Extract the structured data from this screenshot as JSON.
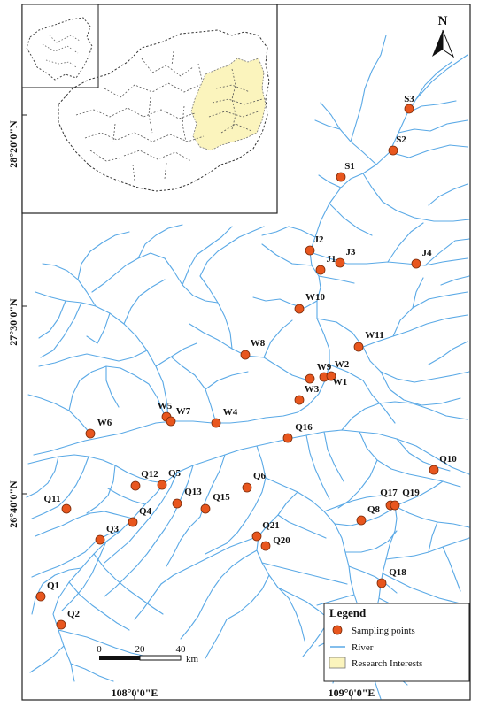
{
  "north_label": "N",
  "lat_labels": [
    "28°20'0\"N",
    "27°30'0\"N",
    "26°40'0\"N"
  ],
  "lon_labels": [
    "108°0'0\"E",
    "109°0'0\"E"
  ],
  "scale_bar": {
    "ticks": [
      "0",
      "20",
      "40"
    ],
    "unit": "km"
  },
  "legend": {
    "title": "Legend",
    "items": [
      {
        "label": "Sampling points"
      },
      {
        "label": "River"
      },
      {
        "label": "Research Interests"
      }
    ]
  },
  "colors": {
    "point": "#e8561e",
    "river": "#5aa9e6",
    "research": "#fbf4bd",
    "boundary": "#333333"
  },
  "points": [
    {
      "id": "S3"
    },
    {
      "id": "S2"
    },
    {
      "id": "S1"
    },
    {
      "id": "J2"
    },
    {
      "id": "J1"
    },
    {
      "id": "J3"
    },
    {
      "id": "J4"
    },
    {
      "id": "W10"
    },
    {
      "id": "W11"
    },
    {
      "id": "W8"
    },
    {
      "id": "W9"
    },
    {
      "id": "W2"
    },
    {
      "id": "W1"
    },
    {
      "id": "W3"
    },
    {
      "id": "W5"
    },
    {
      "id": "W7"
    },
    {
      "id": "W4"
    },
    {
      "id": "W6"
    },
    {
      "id": "Q16"
    },
    {
      "id": "Q10"
    },
    {
      "id": "Q12"
    },
    {
      "id": "Q5"
    },
    {
      "id": "Q6"
    },
    {
      "id": "Q11"
    },
    {
      "id": "Q13"
    },
    {
      "id": "Q15"
    },
    {
      "id": "Q4"
    },
    {
      "id": "Q3"
    },
    {
      "id": "Q17"
    },
    {
      "id": "Q19"
    },
    {
      "id": "Q8"
    },
    {
      "id": "Q21"
    },
    {
      "id": "Q20"
    },
    {
      "id": "Q18"
    },
    {
      "id": "Q1"
    },
    {
      "id": "Q2"
    }
  ]
}
